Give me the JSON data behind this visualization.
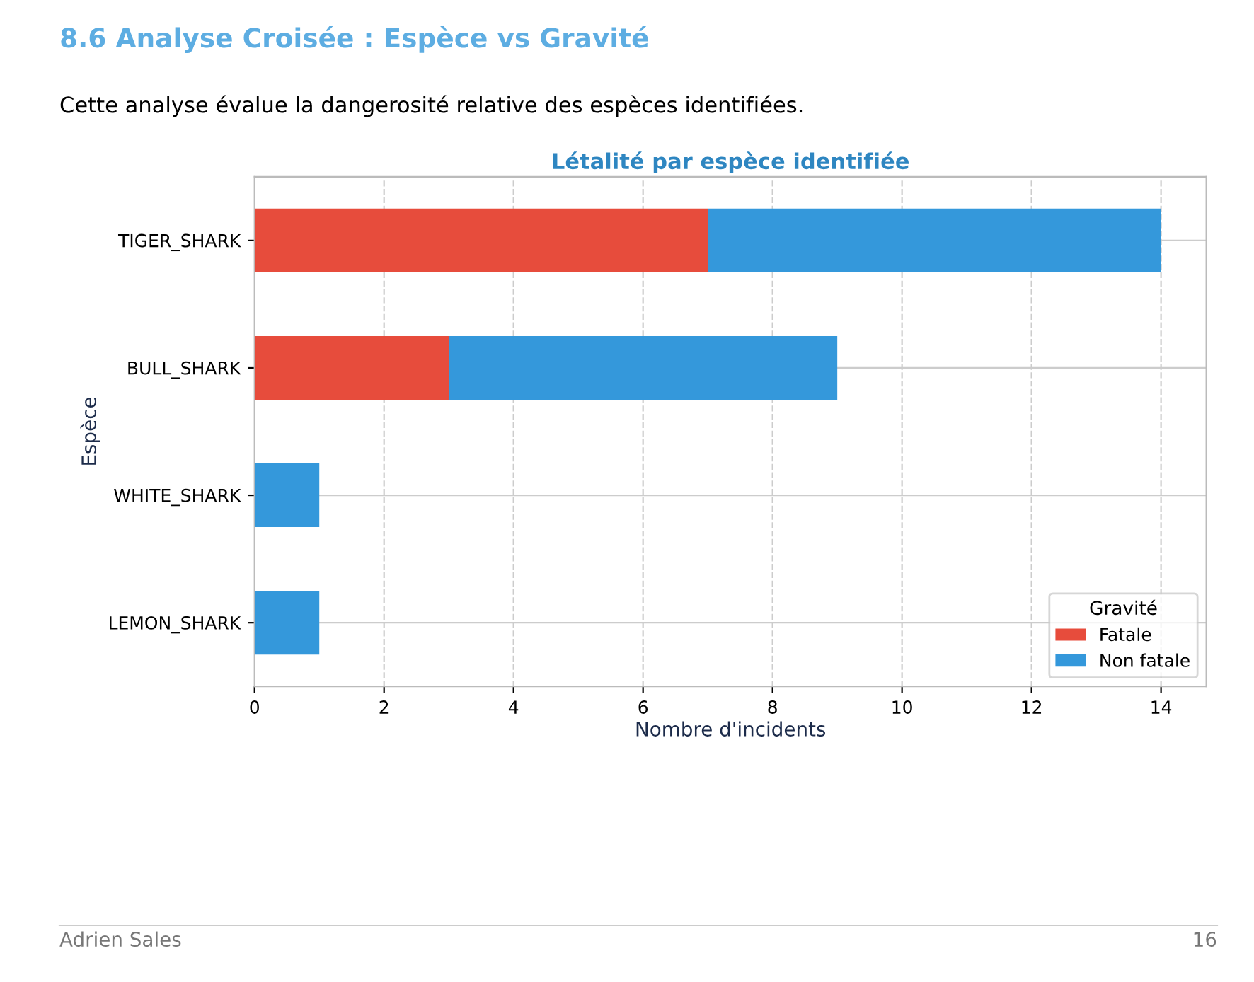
{
  "chart_data": {
    "type": "bar",
    "orientation": "horizontal",
    "stacked": true,
    "title": "Létalité par espèce identifiée",
    "xlabel": "Nombre d'incidents",
    "ylabel": "Espèce",
    "legend_title": "Gravité",
    "legend": "bottom right",
    "grid": true,
    "categories": [
      "TIGER_SHARK",
      "BULL_SHARK",
      "WHITE_SHARK",
      "LEMON_SHARK"
    ],
    "series": [
      {
        "name": "Fatale",
        "color": "#e74c3c",
        "values": [
          7,
          3,
          0,
          0
        ]
      },
      {
        "name": "Non fatale",
        "color": "#3498db",
        "values": [
          7,
          6,
          1,
          1
        ]
      }
    ],
    "xlim": [
      0,
      14.7
    ],
    "xticks": [
      0,
      2,
      4,
      6,
      8,
      10,
      12,
      14
    ],
    "annotations": [
      "8.6 Analyse Croisée : Espèce vs Gravité",
      "Cette analyse évalue la dangerosité relative des espèces identifiées.",
      "Adrien Sales",
      "16"
    ]
  }
}
